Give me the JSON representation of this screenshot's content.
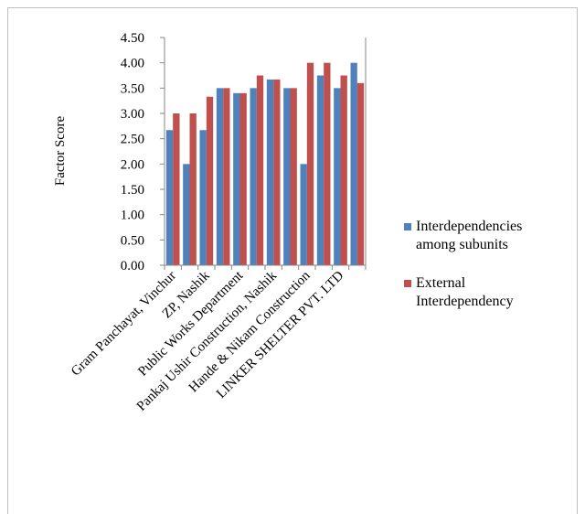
{
  "chart_data": {
    "type": "bar",
    "ylabel": "Factor  Score",
    "categories": [
      "Gram Panchayat, Vinchur",
      null,
      "ZP, Nashik",
      null,
      "Public Works Department",
      null,
      "Pankaj Ushir Construction, Nashik",
      null,
      "Hande & Nikam Construction",
      null,
      "LINKER SHELTER PVT. LTD",
      null
    ],
    "series": [
      {
        "name": "Interdependencies among subunits",
        "color": "#4f81bd",
        "values": [
          2.67,
          2.0,
          2.67,
          3.5,
          3.4,
          3.5,
          3.67,
          3.5,
          2.0,
          3.75,
          3.5,
          4.0
        ]
      },
      {
        "name": "External Interdependency",
        "color": "#c0504d",
        "values": [
          3.0,
          3.0,
          3.33,
          3.5,
          3.4,
          3.75,
          3.67,
          3.5,
          4.0,
          4.0,
          3.75,
          3.6
        ]
      }
    ],
    "ylim": [
      0,
      4.5
    ],
    "yticks": [
      {
        "value": 0,
        "label": "0.00"
      },
      {
        "value": 0.5,
        "label": "0.50"
      },
      {
        "value": 1,
        "label": "1.00"
      },
      {
        "value": 1.5,
        "label": "1.50"
      },
      {
        "value": 2,
        "label": "2.00"
      },
      {
        "value": 2.5,
        "label": "2.50"
      },
      {
        "value": 3,
        "label": "3.00"
      },
      {
        "value": 3.5,
        "label": "3.50"
      },
      {
        "value": 4,
        "label": "4.00"
      },
      {
        "value": 4.5,
        "label": "4.50"
      }
    ],
    "legend": "right"
  }
}
